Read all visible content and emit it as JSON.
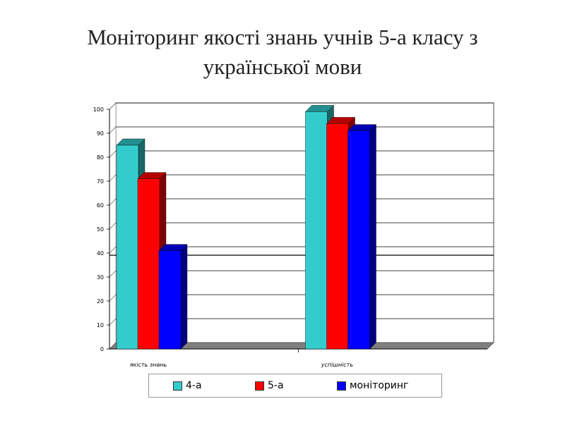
{
  "title_line1": "Моніторинг якості знань учнів 5-а класу з",
  "title_line2": "української мови",
  "chart_data": {
    "type": "bar",
    "categories": [
      "якість знань",
      "успішність"
    ],
    "series": [
      {
        "name": "4-а",
        "values": [
          85,
          99
        ],
        "color": "#33CCCC"
      },
      {
        "name": "5-а",
        "values": [
          71,
          94
        ],
        "color": "#FF0000"
      },
      {
        "name": "моніторинг",
        "values": [
          41,
          91
        ],
        "color": "#0000FF"
      }
    ],
    "ylim": [
      0,
      100
    ],
    "yticks": [
      0,
      10,
      20,
      30,
      40,
      50,
      60,
      70,
      80,
      90,
      100
    ],
    "grid": true,
    "legend_position": "bottom"
  }
}
